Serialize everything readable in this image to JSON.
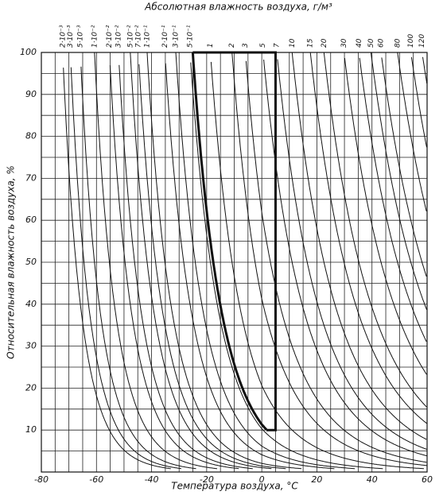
{
  "chart_data": {
    "type": "nomogram",
    "title": "Абсолютная влажность воздуха, г/м³",
    "x_label": "Температура воздуха, °C",
    "y_label": "Относительная влажность воздуха, %",
    "xlim": [
      -80,
      60
    ],
    "ylim": [
      0,
      100
    ],
    "xticks": [
      -80,
      -60,
      -40,
      -20,
      0,
      20,
      40,
      60
    ],
    "yticks": [
      10,
      20,
      30,
      40,
      50,
      60,
      70,
      80,
      90,
      100
    ],
    "xgrid": [
      -80,
      -75,
      -70,
      -65,
      -60,
      -55,
      -50,
      -45,
      -40,
      -35,
      -30,
      -25,
      -20,
      -15,
      -10,
      -5,
      0,
      5,
      10,
      15,
      20,
      25,
      30,
      35,
      40,
      45,
      50,
      55,
      60
    ],
    "ygrid": [
      0,
      5,
      10,
      15,
      20,
      25,
      30,
      35,
      40,
      45,
      50,
      55,
      60,
      65,
      70,
      75,
      80,
      85,
      90,
      95,
      100
    ],
    "grid": true,
    "color": "#111111",
    "curves": {
      "values": [
        0.002,
        0.003,
        0.005,
        0.01,
        0.02,
        0.03,
        0.05,
        0.07,
        0.1,
        0.2,
        0.3,
        0.5,
        1,
        2,
        3,
        5,
        7,
        10,
        15,
        20,
        30,
        40,
        50,
        60,
        80,
        100,
        120
      ],
      "value_labels": [
        "2·10⁻³",
        "3·10⁻³",
        "5·10⁻³",
        "1·10⁻²",
        "2·10⁻²",
        "3·10⁻²",
        "5·10⁻²",
        "7·10⁻²",
        "1·10⁻¹",
        "2·10⁻¹",
        "3·10⁻¹",
        "5·10⁻¹",
        "1",
        "2",
        "3",
        "5",
        "7",
        "10",
        "15",
        "20",
        "30",
        "40",
        "50",
        "60",
        "80",
        "100",
        "120"
      ]
    },
    "highlight": {
      "abs_humidity": 0.55,
      "temperature": 5,
      "rh_min": 10
    }
  }
}
